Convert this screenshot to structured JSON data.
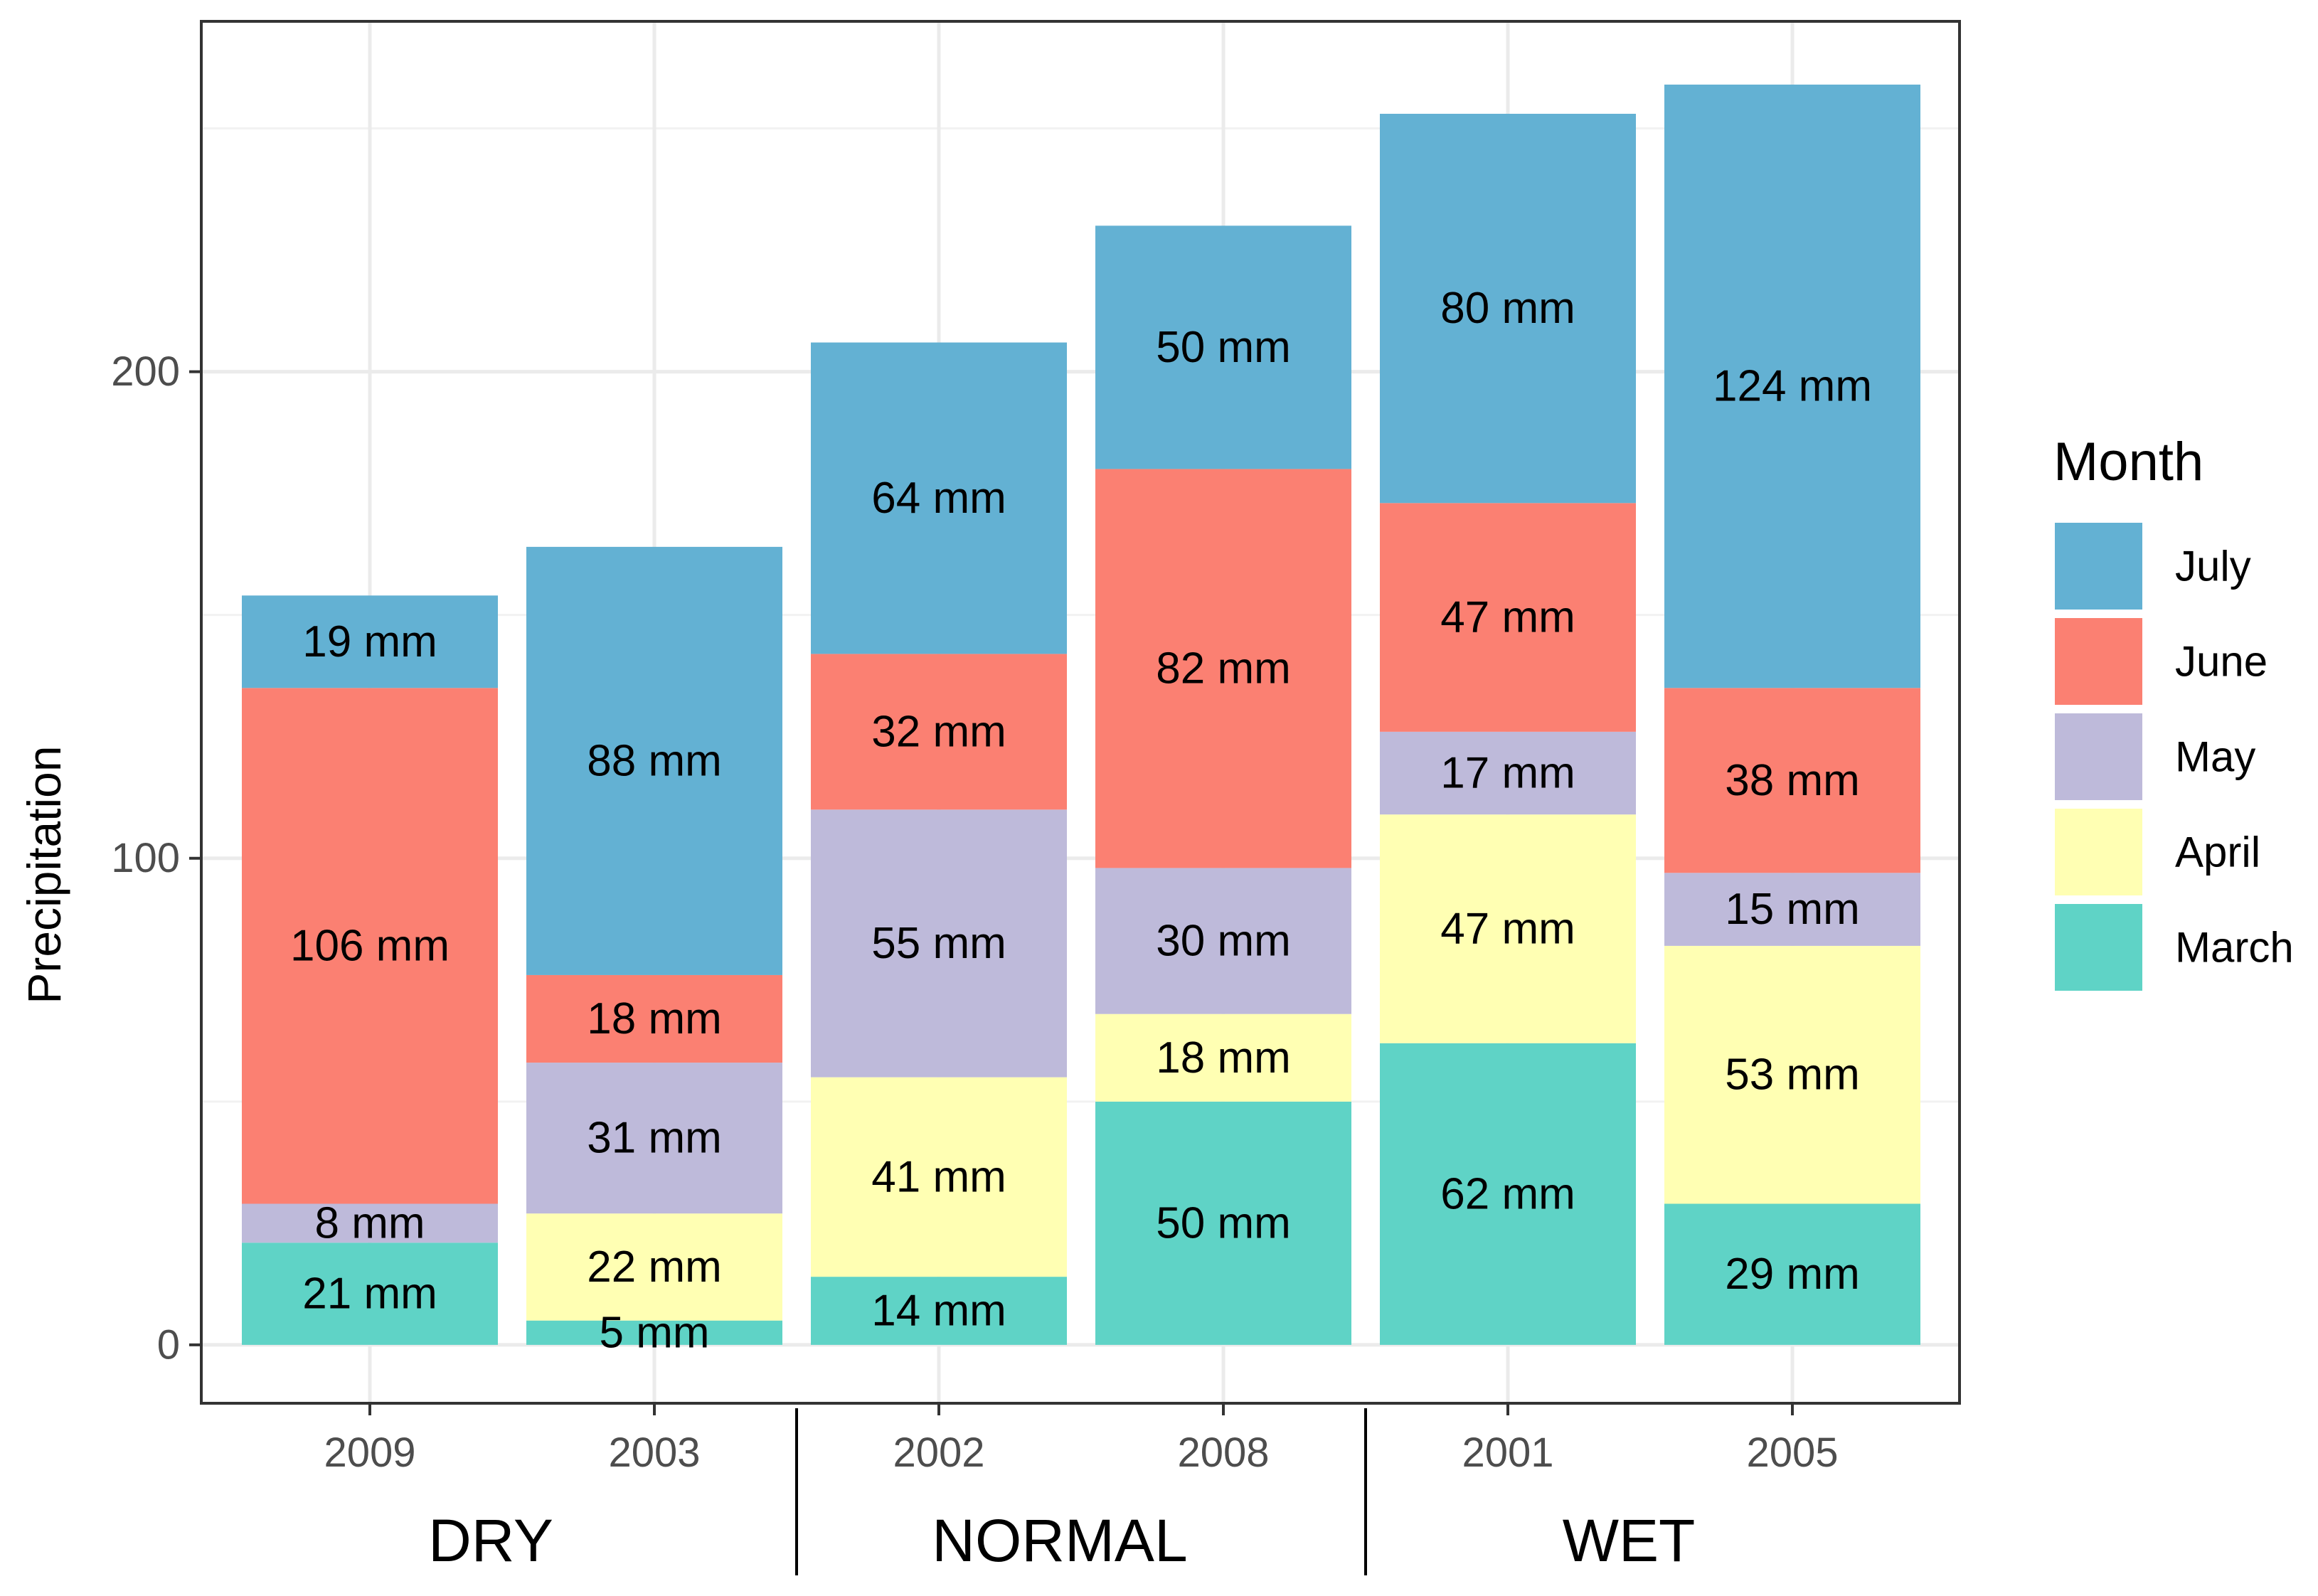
{
  "chart_data": {
    "type": "bar",
    "stacked": true,
    "ylabel": "Precipitation",
    "xlabel": "",
    "ylim": [
      -12,
      272
    ],
    "yticks": [
      0,
      100,
      200
    ],
    "yticks_labels": [
      "0",
      "100",
      "200"
    ],
    "grid": true,
    "categories": [
      "2009",
      "2003",
      "2002",
      "2008",
      "2001",
      "2005"
    ],
    "groups": [
      {
        "label": "DRY",
        "categories": [
          "2009",
          "2003"
        ]
      },
      {
        "label": "NORMAL",
        "categories": [
          "2002",
          "2008"
        ]
      },
      {
        "label": "WET",
        "categories": [
          "2001",
          "2005"
        ]
      }
    ],
    "legend": {
      "title": "Month",
      "position": "right"
    },
    "series": [
      {
        "name": "March",
        "color": "#5fd3c6",
        "values": [
          21,
          5,
          14,
          50,
          62,
          29
        ],
        "labels": [
          "21 mm",
          "5 mm",
          "14 mm",
          "50 mm",
          "62 mm",
          "29 mm"
        ]
      },
      {
        "name": "April",
        "color": "#ffffb3",
        "values": [
          0,
          22,
          41,
          18,
          47,
          53
        ],
        "labels": [
          "",
          "22 mm",
          "41 mm",
          "18 mm",
          "47 mm",
          "53 mm"
        ]
      },
      {
        "name": "May",
        "color": "#bebada",
        "values": [
          8,
          31,
          55,
          30,
          17,
          15
        ],
        "labels": [
          "8 mm",
          "31 mm",
          "55 mm",
          "30 mm",
          "17 mm",
          "15 mm"
        ]
      },
      {
        "name": "June",
        "color": "#fb8072",
        "values": [
          106,
          18,
          32,
          82,
          47,
          38
        ],
        "labels": [
          "106 mm",
          "18 mm",
          "32 mm",
          "82 mm",
          "47 mm",
          "38 mm"
        ]
      },
      {
        "name": "July",
        "color": "#63b1d3",
        "values": [
          19,
          88,
          64,
          50,
          80,
          124
        ],
        "labels": [
          "19 mm",
          "88 mm",
          "64 mm",
          "50 mm",
          "80 mm",
          "124 mm"
        ]
      }
    ],
    "legend_order": [
      "July",
      "June",
      "May",
      "April",
      "March"
    ]
  }
}
